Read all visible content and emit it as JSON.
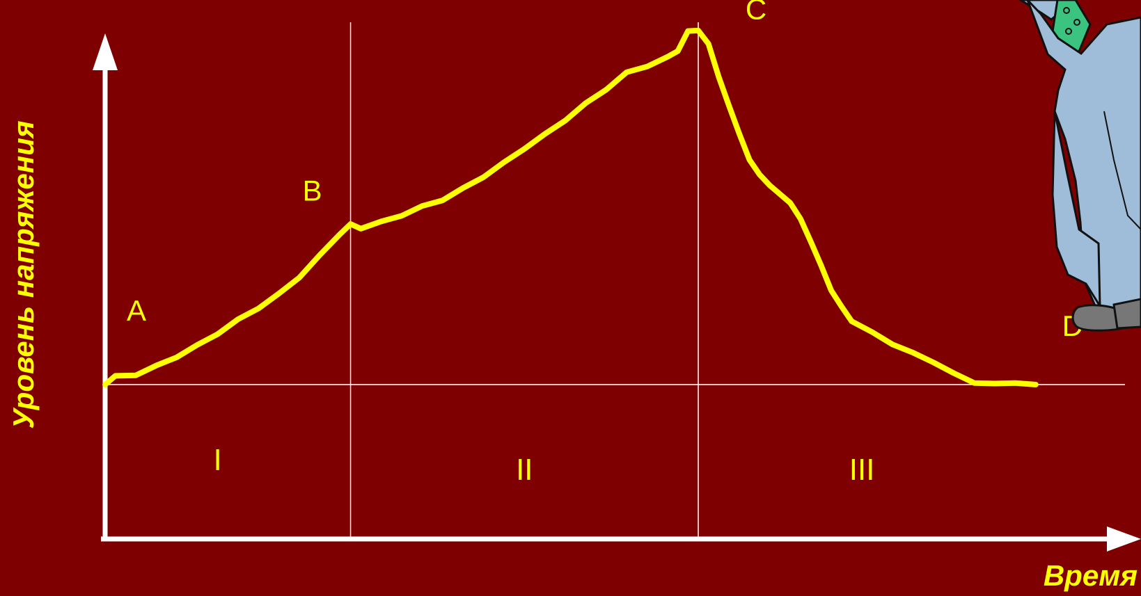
{
  "colors": {
    "background": "#7f0000",
    "axis": "#ffffff",
    "guide": "#ffffff",
    "curve": "#ffff00",
    "text": "#ffff00"
  },
  "chart_data": {
    "type": "line",
    "title": "",
    "xlabel": "Время",
    "ylabel": "Уровень напряжения",
    "xlim": [
      0,
      100
    ],
    "ylim": [
      0,
      100
    ],
    "baseline": 30,
    "grid": false,
    "phase_boundaries": [
      24,
      58
    ],
    "phases": [
      {
        "label": "I",
        "x": 11
      },
      {
        "label": "II",
        "x": 41
      },
      {
        "label": "III",
        "x": 74
      }
    ],
    "points": [
      {
        "label": "A",
        "x": 0,
        "y": 30
      },
      {
        "label": "B",
        "x": 24,
        "y": 61
      },
      {
        "label": "C",
        "x": 58,
        "y": 99
      },
      {
        "label": "D",
        "x": 91,
        "y": 30
      }
    ],
    "series": [
      {
        "values": [
          [
            0,
            30
          ],
          [
            1,
            31.5
          ],
          [
            3,
            32
          ],
          [
            5,
            33.5
          ],
          [
            7,
            35.5
          ],
          [
            9,
            37.5
          ],
          [
            11,
            40
          ],
          [
            13,
            42.5
          ],
          [
            15,
            45
          ],
          [
            17,
            47.5
          ],
          [
            19,
            51
          ],
          [
            21,
            55
          ],
          [
            23,
            59.5
          ],
          [
            24,
            61
          ],
          [
            25,
            60.5
          ],
          [
            27,
            61.5
          ],
          [
            29,
            63
          ],
          [
            31,
            64.5
          ],
          [
            33,
            66
          ],
          [
            35,
            68
          ],
          [
            37,
            70.5
          ],
          [
            39,
            73
          ],
          [
            41,
            76
          ],
          [
            43,
            78.5
          ],
          [
            45,
            81.5
          ],
          [
            47,
            84.5
          ],
          [
            49,
            87.5
          ],
          [
            51,
            90.5
          ],
          [
            53,
            92
          ],
          [
            55,
            93.5
          ],
          [
            56,
            95
          ],
          [
            57,
            98.5
          ],
          [
            58,
            99
          ],
          [
            59,
            96
          ],
          [
            60,
            90
          ],
          [
            61,
            84
          ],
          [
            62,
            79
          ],
          [
            63,
            73.5
          ],
          [
            64,
            71
          ],
          [
            65,
            68.5
          ],
          [
            67,
            65.5
          ],
          [
            68,
            62
          ],
          [
            69,
            58
          ],
          [
            70,
            53
          ],
          [
            71,
            48.5
          ],
          [
            72,
            45
          ],
          [
            73,
            42.5
          ],
          [
            75,
            40
          ],
          [
            77,
            38
          ],
          [
            79,
            36
          ],
          [
            81,
            34.5
          ],
          [
            83,
            32
          ],
          [
            85,
            30.5
          ],
          [
            87,
            30
          ],
          [
            89,
            30.5
          ],
          [
            91,
            30
          ]
        ]
      }
    ]
  }
}
